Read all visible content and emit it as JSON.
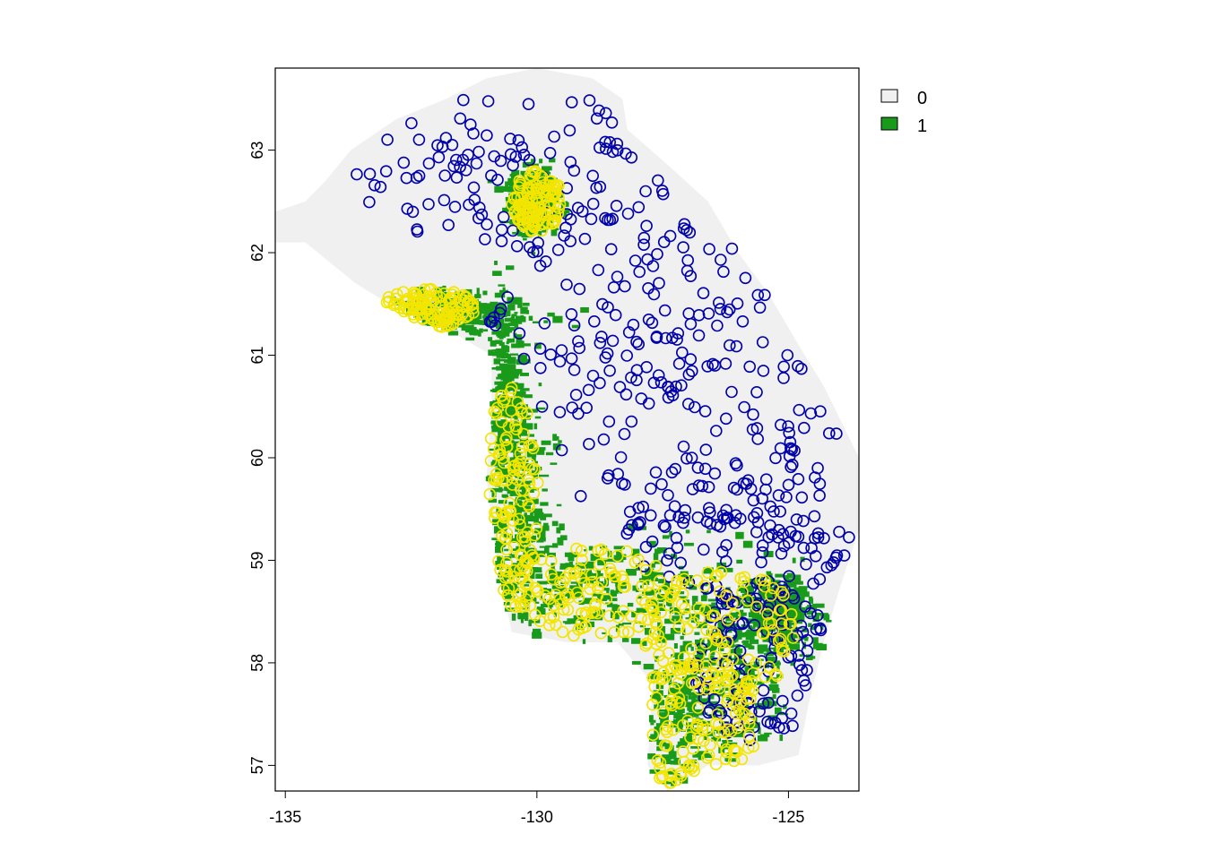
{
  "chart_data": {
    "type": "scatter",
    "title": "",
    "xlabel": "",
    "ylabel": "",
    "xlim": [
      -135.2,
      -123.6
    ],
    "ylim": [
      56.75,
      63.8
    ],
    "x_ticks": [
      {
        "value": -135,
        "label": "-135"
      },
      {
        "value": -130,
        "label": "-130"
      },
      {
        "value": -125,
        "label": "-125"
      }
    ],
    "y_ticks": [
      {
        "value": 57,
        "label": "57"
      },
      {
        "value": 58,
        "label": "58"
      },
      {
        "value": 59,
        "label": "59"
      },
      {
        "value": 60,
        "label": "60"
      },
      {
        "value": 61,
        "label": "61"
      },
      {
        "value": 62,
        "label": "62"
      },
      {
        "value": 63,
        "label": "63"
      }
    ],
    "raster_legend": {
      "placement": "top-right",
      "entries": [
        {
          "label": "0",
          "color": "#f0f0f0"
        },
        {
          "label": "1",
          "color": "#1a9a1a"
        }
      ]
    },
    "region_outline": [
      [
        -130.0,
        63.8
      ],
      [
        -128.9,
        63.7
      ],
      [
        -128.3,
        63.5
      ],
      [
        -128.2,
        63.2
      ],
      [
        -127.5,
        62.9
      ],
      [
        -126.6,
        62.5
      ],
      [
        -126.0,
        62.0
      ],
      [
        -125.4,
        61.6
      ],
      [
        -124.8,
        61.1
      ],
      [
        -124.3,
        60.7
      ],
      [
        -123.9,
        60.3
      ],
      [
        -123.6,
        60.0
      ],
      [
        -123.6,
        59.3
      ],
      [
        -124.0,
        58.7
      ],
      [
        -124.3,
        58.2
      ],
      [
        -124.6,
        57.6
      ],
      [
        -124.8,
        57.1
      ],
      [
        -125.6,
        57.0
      ],
      [
        -126.6,
        57.0
      ],
      [
        -127.4,
        56.75
      ],
      [
        -127.8,
        57.0
      ],
      [
        -127.7,
        57.8
      ],
      [
        -128.4,
        58.2
      ],
      [
        -129.4,
        58.2
      ],
      [
        -130.5,
        58.3
      ],
      [
        -130.8,
        59.0
      ],
      [
        -131.0,
        59.8
      ],
      [
        -130.9,
        60.5
      ],
      [
        -130.9,
        61.0
      ],
      [
        -131.6,
        61.2
      ],
      [
        -132.6,
        61.4
      ],
      [
        -133.6,
        61.7
      ],
      [
        -134.6,
        62.1
      ],
      [
        -135.2,
        62.1
      ],
      [
        -135.2,
        62.4
      ],
      [
        -134.6,
        62.5
      ],
      [
        -134.2,
        62.7
      ],
      [
        -133.7,
        63.0
      ],
      [
        -132.8,
        63.3
      ],
      [
        -131.8,
        63.5
      ],
      [
        -131.0,
        63.7
      ],
      [
        -130.0,
        63.8
      ]
    ],
    "habitat_zones": [
      {
        "x": -127.0,
        "y": 57.4,
        "rx": 1.5,
        "ry": 0.6
      },
      {
        "x": -126.2,
        "y": 58.2,
        "rx": 1.6,
        "ry": 0.6
      },
      {
        "x": -128.8,
        "y": 58.75,
        "rx": 2.0,
        "ry": 0.45
      },
      {
        "x": -130.3,
        "y": 59.4,
        "rx": 0.6,
        "ry": 1.2
      },
      {
        "x": -130.6,
        "y": 60.5,
        "rx": 0.35,
        "ry": 0.9
      },
      {
        "x": -131.6,
        "y": 61.4,
        "rx": 1.3,
        "ry": 0.22
      },
      {
        "x": -130.1,
        "y": 62.5,
        "rx": 0.5,
        "ry": 0.3
      },
      {
        "x": -125.2,
        "y": 58.5,
        "rx": 0.7,
        "ry": 0.4
      }
    ],
    "series": [
      {
        "name": "0",
        "color": "#0000aa",
        "count": 560,
        "zones": [
          {
            "x": -130.5,
            "y": 62.8,
            "rx": 3.2,
            "ry": 0.8
          },
          {
            "x": -128.2,
            "y": 61.5,
            "rx": 2.8,
            "ry": 0.9
          },
          {
            "x": -127.0,
            "y": 60.3,
            "rx": 3.0,
            "ry": 1.0
          },
          {
            "x": -126.0,
            "y": 59.3,
            "rx": 2.3,
            "ry": 0.7
          },
          {
            "x": -125.5,
            "y": 58.0,
            "rx": 1.4,
            "ry": 0.8
          }
        ]
      },
      {
        "name": "1",
        "color": "#f2e600",
        "count": 720,
        "zones": [
          {
            "x": -127.0,
            "y": 57.4,
            "rx": 1.6,
            "ry": 0.6
          },
          {
            "x": -126.3,
            "y": 58.3,
            "rx": 1.6,
            "ry": 0.6
          },
          {
            "x": -128.9,
            "y": 58.7,
            "rx": 1.9,
            "ry": 0.45
          },
          {
            "x": -130.5,
            "y": 59.6,
            "rx": 0.55,
            "ry": 1.1
          },
          {
            "x": -132.2,
            "y": 61.45,
            "rx": 1.0,
            "ry": 0.2
          },
          {
            "x": -130.0,
            "y": 62.5,
            "rx": 0.5,
            "ry": 0.3
          }
        ]
      }
    ]
  }
}
